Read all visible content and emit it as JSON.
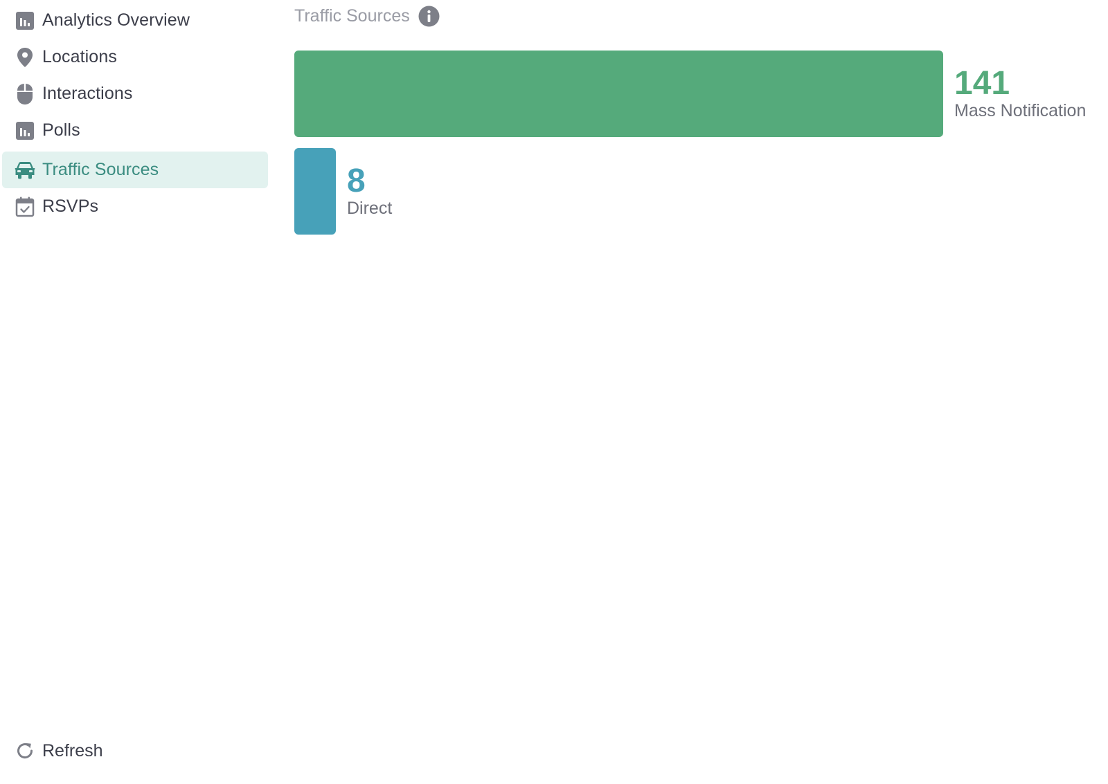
{
  "sidebar": {
    "items": [
      {
        "label": "Analytics Overview",
        "icon": "bar-chart-icon",
        "active": false
      },
      {
        "label": "Locations",
        "icon": "map-pin-icon",
        "active": false
      },
      {
        "label": "Interactions",
        "icon": "mouse-icon",
        "active": false
      },
      {
        "label": "Polls",
        "icon": "bar-chart-icon",
        "active": false
      },
      {
        "label": "Traffic Sources",
        "icon": "car-icon",
        "active": true
      },
      {
        "label": "RSVPs",
        "icon": "calendar-check-icon",
        "active": false
      }
    ],
    "refresh_label": "Refresh"
  },
  "main": {
    "title": "Traffic Sources",
    "info_icon": "info-icon"
  },
  "colors": {
    "accent": "#3a8c80",
    "active_bg": "#e2f2ef",
    "icon_gray": "#7d7f88",
    "mass_notification": "#55aa7b",
    "direct": "#47a1b9"
  },
  "chart_data": {
    "type": "bar",
    "orientation": "horizontal",
    "categories": [
      "Mass Notification",
      "Direct"
    ],
    "values": [
      141,
      8
    ],
    "colors": [
      "#55aa7b",
      "#47a1b9"
    ]
  }
}
